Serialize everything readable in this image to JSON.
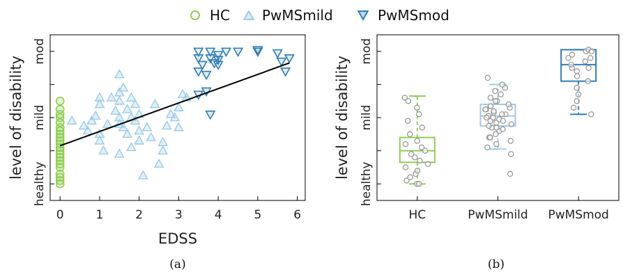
{
  "legend": [
    {
      "name": "HC",
      "marker": "circle"
    },
    {
      "name": "PwMSmild",
      "marker": "triangle-up"
    },
    {
      "name": "PwMSmod",
      "marker": "triangle-down"
    }
  ],
  "colors": {
    "HC": "#8fcf4f",
    "PwMSmild": "#9ccbe6",
    "PwMSmod": "#2f7db5",
    "points_b": "#9a9a9a",
    "regression": "#000000"
  },
  "captions": [
    "(a)",
    "(b)"
  ],
  "chart_data": [
    {
      "type": "scatter",
      "panel": "(a)",
      "xlabel": "EDSS",
      "ylabel": "level of disability",
      "xlim": [
        -0.25,
        6.2
      ],
      "ylim": [
        0,
        1
      ],
      "xticks": [
        0,
        1,
        2,
        3,
        4,
        5,
        6
      ],
      "yticks": [
        {
          "value": 0.1,
          "label": "healthy"
        },
        {
          "value": 0.5,
          "label": "mild"
        },
        {
          "value": 0.9,
          "label": "mod"
        }
      ],
      "grid": false,
      "regression_line": {
        "x": [
          0,
          5.8
        ],
        "y": [
          0.33,
          0.83
        ]
      },
      "series": [
        {
          "name": "HC",
          "marker": "circle",
          "x": [
            0,
            0,
            0,
            0,
            0,
            0,
            0,
            0,
            0,
            0,
            0,
            0,
            0,
            0,
            0,
            0,
            0,
            0,
            0,
            0,
            0,
            0
          ],
          "y": [
            0.55,
            0.52,
            0.5,
            0.47,
            0.44,
            0.42,
            0.4,
            0.38,
            0.36,
            0.34,
            0.32,
            0.3,
            0.28,
            0.26,
            0.24,
            0.22,
            0.2,
            0.16,
            0.14,
            0.12,
            0.1,
            0.6
          ]
        },
        {
          "name": "PwMSmild",
          "marker": "triangle-up",
          "x": [
            0.3,
            0.6,
            0.7,
            0.8,
            0.9,
            1.0,
            1.0,
            1.0,
            1.0,
            1.1,
            1.2,
            1.3,
            1.4,
            1.5,
            1.5,
            1.5,
            1.5,
            1.5,
            1.6,
            1.6,
            1.7,
            1.7,
            1.8,
            1.8,
            1.9,
            1.9,
            2.0,
            2.0,
            2.1,
            2.2,
            2.3,
            2.4,
            2.5,
            2.6,
            2.6,
            2.7,
            2.8,
            2.9,
            3.0,
            3.0,
            3.1,
            3.2,
            1.8,
            1.5,
            2.0
          ],
          "y": [
            0.48,
            0.45,
            0.42,
            0.48,
            0.51,
            0.62,
            0.58,
            0.4,
            0.36,
            0.3,
            0.46,
            0.62,
            0.54,
            0.65,
            0.6,
            0.5,
            0.46,
            0.28,
            0.68,
            0.44,
            0.55,
            0.4,
            0.5,
            0.32,
            0.58,
            0.48,
            0.52,
            0.42,
            0.15,
            0.44,
            0.38,
            0.58,
            0.22,
            0.35,
            0.3,
            0.45,
            0.52,
            0.5,
            0.56,
            0.44,
            0.64,
            0.62,
            0.62,
            0.76,
            0.36
          ]
        },
        {
          "name": "PwMSmod",
          "marker": "triangle-down",
          "x": [
            3.5,
            3.5,
            3.5,
            3.6,
            3.7,
            3.8,
            3.8,
            3.9,
            4.0,
            4.0,
            4.0,
            4.2,
            4.5,
            5.0,
            5.0,
            5.5,
            5.6,
            5.7,
            5.8,
            3.5,
            3.7,
            3.8
          ],
          "y": [
            0.9,
            0.86,
            0.78,
            0.82,
            0.76,
            0.9,
            0.86,
            0.83,
            0.88,
            0.85,
            0.82,
            0.9,
            0.9,
            0.9,
            0.91,
            0.89,
            0.84,
            0.78,
            0.86,
            0.64,
            0.66,
            0.52
          ]
        }
      ]
    },
    {
      "type": "box",
      "panel": "(b)",
      "ylabel": "level of disability",
      "categories": [
        "HC",
        "PwMSmild",
        "PwMSmod"
      ],
      "ylim": [
        0,
        1
      ],
      "yticks": [
        {
          "value": 0.1,
          "label": "healthy"
        },
        {
          "value": 0.5,
          "label": "mild"
        },
        {
          "value": 0.9,
          "label": "mod"
        }
      ],
      "grid": false,
      "boxes": [
        {
          "name": "HC",
          "whisker_low": 0.1,
          "q1": 0.23,
          "median": 0.3,
          "q3": 0.38,
          "whisker_high": 0.63
        },
        {
          "name": "PwMSmild",
          "whisker_low": 0.31,
          "q1": 0.45,
          "median": 0.51,
          "q3": 0.58,
          "whisker_high": 0.7
        },
        {
          "name": "PwMSmod",
          "whisker_low": 0.52,
          "q1": 0.72,
          "median": 0.82,
          "q3": 0.91,
          "whisker_high": 0.91
        }
      ],
      "points": [
        {
          "name": "HC",
          "y": [
            0.1,
            0.1,
            0.12,
            0.14,
            0.16,
            0.18,
            0.2,
            0.22,
            0.24,
            0.26,
            0.28,
            0.3,
            0.32,
            0.34,
            0.36,
            0.4,
            0.44,
            0.48,
            0.52,
            0.56,
            0.6,
            0.62
          ]
        },
        {
          "name": "PwMSmild",
          "y": [
            0.16,
            0.28,
            0.32,
            0.34,
            0.36,
            0.38,
            0.4,
            0.42,
            0.43,
            0.44,
            0.45,
            0.46,
            0.47,
            0.48,
            0.49,
            0.5,
            0.51,
            0.52,
            0.53,
            0.54,
            0.55,
            0.56,
            0.57,
            0.58,
            0.6,
            0.62,
            0.64,
            0.66,
            0.68,
            0.7,
            0.74,
            0.38,
            0.44,
            0.5,
            0.55,
            0.6,
            0.48,
            0.52
          ]
        },
        {
          "name": "PwMSmod",
          "y": [
            0.52,
            0.56,
            0.6,
            0.64,
            0.68,
            0.72,
            0.75,
            0.78,
            0.8,
            0.82,
            0.84,
            0.86,
            0.88,
            0.9,
            0.91,
            0.9,
            0.86,
            0.8
          ]
        }
      ]
    }
  ]
}
